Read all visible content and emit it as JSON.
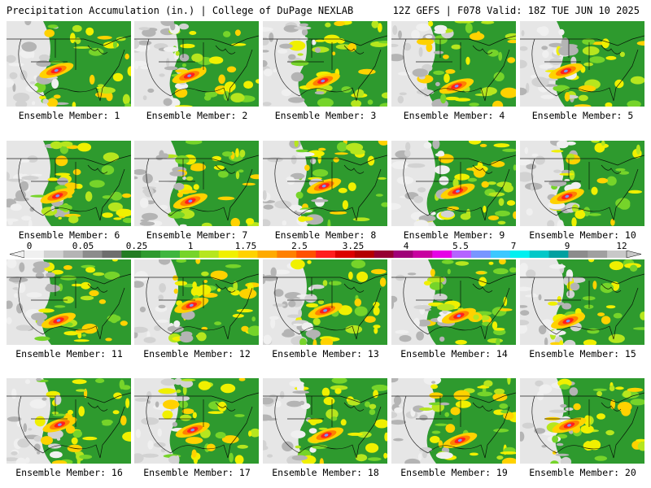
{
  "header": {
    "left": "Precipitation Accumulation (in.) | College of DuPage NEXLAB",
    "right": "12Z GEFS | F078 Valid: 18Z TUE JUN 10 2025"
  },
  "panels": [
    {
      "label": "Ensemble Member: 1"
    },
    {
      "label": "Ensemble Member: 2"
    },
    {
      "label": "Ensemble Member: 3"
    },
    {
      "label": "Ensemble Member: 4"
    },
    {
      "label": "Ensemble Member: 5"
    },
    {
      "label": "Ensemble Member: 6"
    },
    {
      "label": "Ensemble Member: 7"
    },
    {
      "label": "Ensemble Member: 8"
    },
    {
      "label": "Ensemble Member: 9"
    },
    {
      "label": "Ensemble Member: 10"
    },
    {
      "label": "Ensemble Member: 11"
    },
    {
      "label": "Ensemble Member: 12"
    },
    {
      "label": "Ensemble Member: 13"
    },
    {
      "label": "Ensemble Member: 14"
    },
    {
      "label": "Ensemble Member: 15"
    },
    {
      "label": "Ensemble Member: 16"
    },
    {
      "label": "Ensemble Member: 17"
    },
    {
      "label": "Ensemble Member: 18"
    },
    {
      "label": "Ensemble Member: 19"
    },
    {
      "label": "Ensemble Member: 20"
    }
  ],
  "colorbar": {
    "ticks": [
      "0",
      "0.05",
      "0.25",
      "1",
      "1.75",
      "2.5",
      "3.25",
      "4",
      "5.5",
      "7",
      "9",
      "12"
    ],
    "colors": [
      "#f0f0f0",
      "#d2d2d2",
      "#b4b4b4",
      "#8c8c8c",
      "#6e6e6e",
      "#227c22",
      "#2e9a2e",
      "#3fb63f",
      "#76d42a",
      "#b6e61e",
      "#f0f000",
      "#ffd200",
      "#ffaa00",
      "#ff8000",
      "#ff5000",
      "#ff1e1e",
      "#dc0000",
      "#b40000",
      "#960032",
      "#a00078",
      "#c800a0",
      "#e600e6",
      "#b464ff",
      "#7896ff",
      "#3cc8ff",
      "#00f0f0",
      "#00c8c8",
      "#00a0a0",
      "#8c8c8c",
      "#a0a0a0",
      "#c8c8c8"
    ]
  }
}
